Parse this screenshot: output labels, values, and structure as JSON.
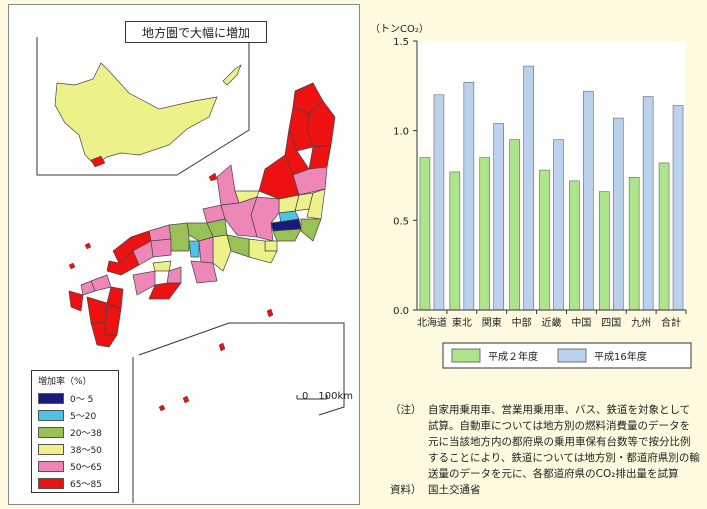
{
  "map": {
    "title": "地方圏で大幅に増加",
    "legend_title": "増加率（%）",
    "legend": [
      {
        "label": "0～ 5",
        "color": "#1a1a7a"
      },
      {
        "label": "5～20",
        "color": "#4ec3e6"
      },
      {
        "label": "20～38",
        "color": "#99c155"
      },
      {
        "label": "38～50",
        "color": "#eef08a"
      },
      {
        "label": "50～65",
        "color": "#ef86b8"
      },
      {
        "label": "65～85",
        "color": "#ee1111"
      }
    ],
    "scale_label": "0　100km"
  },
  "chart_data": {
    "type": "bar",
    "ylabel": "（トンCO₂）",
    "ylim": [
      0,
      1.5
    ],
    "yticks": [
      "0.0",
      "0.5",
      "1.0",
      "1.5"
    ],
    "categories": [
      "北海道",
      "東北",
      "関東",
      "中部",
      "近畿",
      "中国",
      "四国",
      "九州",
      "合計"
    ],
    "series": [
      {
        "name": "平成２年度",
        "color": "#aee48a",
        "values": [
          0.85,
          0.77,
          0.85,
          0.95,
          0.78,
          0.72,
          0.66,
          0.74,
          0.82
        ]
      },
      {
        "name": "平成16年度",
        "color": "#bcd2ec",
        "values": [
          1.2,
          1.27,
          1.04,
          1.36,
          0.95,
          1.22,
          1.07,
          1.19,
          1.14
        ]
      }
    ]
  },
  "note": {
    "head": "（注）",
    "body": "自家用乗用車、営業用乗用車、バス、鉄道を対象として試算。自動車については地方別の燃料消費量のデータを元に当該地方内の都府県の乗用車保有台数等で按分比例することにより、鉄道については地方別・都道府県別の輸送量のデータを元に、各都道府県のCO₂排出量を試算",
    "source_head": "資料）",
    "source_body": "国土交通省"
  }
}
